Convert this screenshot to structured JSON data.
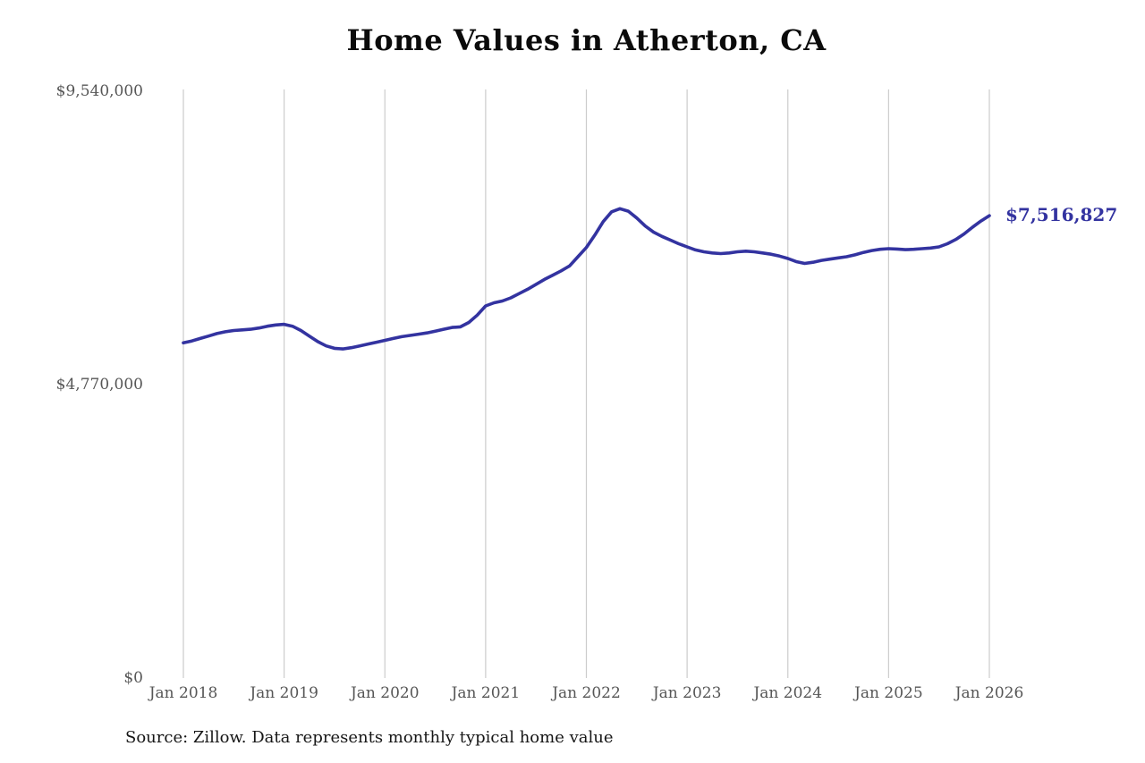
{
  "page": {
    "source_note": "Source: Zillow. Data represents monthly typical home value"
  },
  "chart_data": {
    "type": "line",
    "title": "Home Values in Atherton, CA",
    "xlabel": "",
    "ylabel": "",
    "x_unit": "month",
    "x_range": [
      "Jan 2018",
      "Jan 2026"
    ],
    "x_tick_labels": [
      "Jan 2018",
      "Jan 2019",
      "Jan 2020",
      "Jan 2021",
      "Jan 2022",
      "Jan 2023",
      "Jan 2024",
      "Jan 2025",
      "Jan 2026"
    ],
    "y_ticks": [
      {
        "value": 0,
        "label": "$0"
      },
      {
        "value": 4770000,
        "label": "$4,770,000"
      },
      {
        "value": 9540000,
        "label": "$9,540,000"
      }
    ],
    "ylim": [
      0,
      9540000
    ],
    "grid": "vertical",
    "line_color": "#3333a0",
    "end_label": "$7,516,827",
    "end_value": 7516827,
    "values": [
      5450000,
      5480000,
      5520000,
      5560000,
      5600000,
      5630000,
      5650000,
      5660000,
      5670000,
      5690000,
      5720000,
      5740000,
      5750000,
      5720000,
      5650000,
      5560000,
      5470000,
      5400000,
      5360000,
      5350000,
      5370000,
      5400000,
      5430000,
      5460000,
      5490000,
      5520000,
      5550000,
      5570000,
      5590000,
      5610000,
      5640000,
      5670000,
      5700000,
      5710000,
      5780000,
      5900000,
      6050000,
      6100000,
      6130000,
      6180000,
      6250000,
      6320000,
      6400000,
      6480000,
      6550000,
      6620000,
      6700000,
      6850000,
      7000000,
      7200000,
      7420000,
      7580000,
      7630000,
      7590000,
      7480000,
      7350000,
      7250000,
      7180000,
      7120000,
      7060000,
      7010000,
      6960000,
      6930000,
      6910000,
      6900000,
      6910000,
      6930000,
      6940000,
      6930000,
      6910000,
      6890000,
      6860000,
      6820000,
      6770000,
      6740000,
      6760000,
      6790000,
      6810000,
      6830000,
      6850000,
      6880000,
      6920000,
      6950000,
      6970000,
      6980000,
      6975000,
      6965000,
      6970000,
      6980000,
      6990000,
      7010000,
      7060000,
      7130000,
      7220000,
      7330000,
      7430000,
      7516827
    ]
  }
}
